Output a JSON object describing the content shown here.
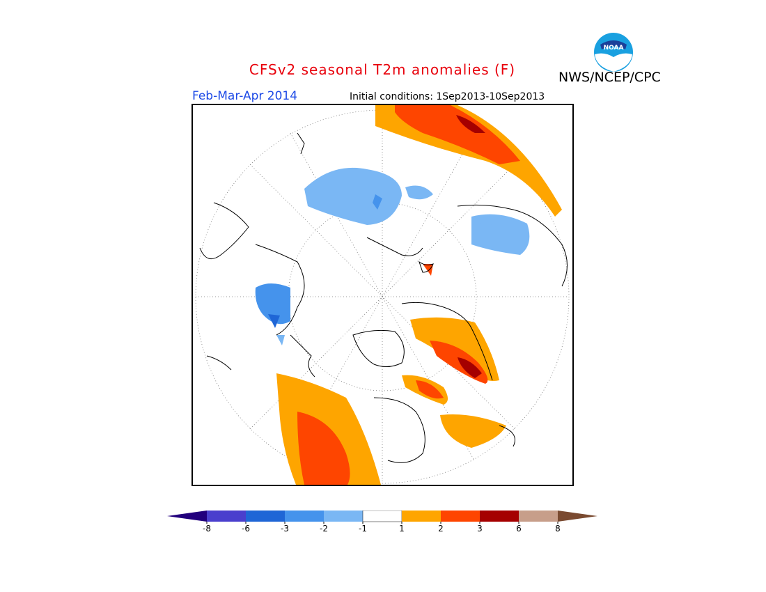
{
  "title": "CFSv2 seasonal T2m anomalies (F)",
  "agency": "NWS/NCEP/CPC",
  "logo_text": "NOAA",
  "season": "Feb-Mar-Apr 2014",
  "initial_conditions": "Initial conditions: 1Sep2013-10Sep2013",
  "colors": {
    "title": "#e8000b",
    "season": "#1c49e6",
    "c_m8_below": "#22007d",
    "c_m8_m6": "#4a3fcd",
    "c_m6_m3": "#1f66d6",
    "c_m3_m2": "#4593ec",
    "c_m2_m1": "#7ab7f4",
    "c_neutral": "#ffffff",
    "c_1_2": "#fea500",
    "c_2_3": "#fe4500",
    "c_3_6": "#a50000",
    "c_6_8": "#c79e8a",
    "c_8_above": "#7a4a30"
  },
  "legend": {
    "tick_labels": [
      "-8",
      "-6",
      "-3",
      "-2",
      "-1",
      "1",
      "2",
      "3",
      "6",
      "8"
    ]
  }
}
